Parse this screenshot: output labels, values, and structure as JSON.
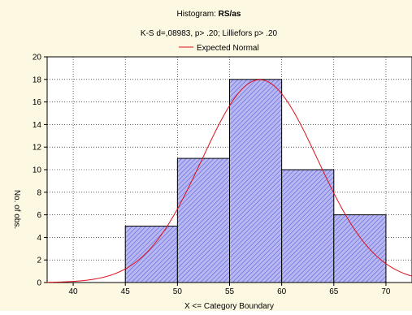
{
  "chart_data": {
    "type": "bar",
    "title_prefix": "Histogram: ",
    "title_bold": "RS/as",
    "subtitle": "K-S d=,08983, p> .20; Lilliefors p> .20",
    "legend": {
      "label": "Expected Normal",
      "color": "#e0101c",
      "placement": "top"
    },
    "xlabel": "X <= Category Boundary",
    "ylabel": "No. of obs.",
    "bins": [
      {
        "from": 45,
        "to": 50,
        "count": 5
      },
      {
        "from": 50,
        "to": 55,
        "count": 11
      },
      {
        "from": 55,
        "to": 60,
        "count": 18
      },
      {
        "from": 60,
        "to": 65,
        "count": 10
      },
      {
        "from": 65,
        "to": 70,
        "count": 6
      }
    ],
    "xlim": [
      37.5,
      72.5
    ],
    "ylim": [
      0,
      20
    ],
    "xticks": [
      40,
      45,
      50,
      55,
      60,
      65,
      70
    ],
    "yticks": [
      0,
      2,
      4,
      6,
      8,
      10,
      12,
      14,
      16,
      18,
      20
    ],
    "grid": true,
    "normal_curve": {
      "mean": 57.9,
      "sd": 5.55,
      "n": 50,
      "bin_width": 5
    },
    "colors": {
      "bar_fill": "#b8b8f0",
      "bar_hatch": "#5a5ae0",
      "bar_edge": "#000000",
      "curve": "#e0101c",
      "background": "#fdf8e1",
      "plot_background": "#ffffff"
    }
  }
}
